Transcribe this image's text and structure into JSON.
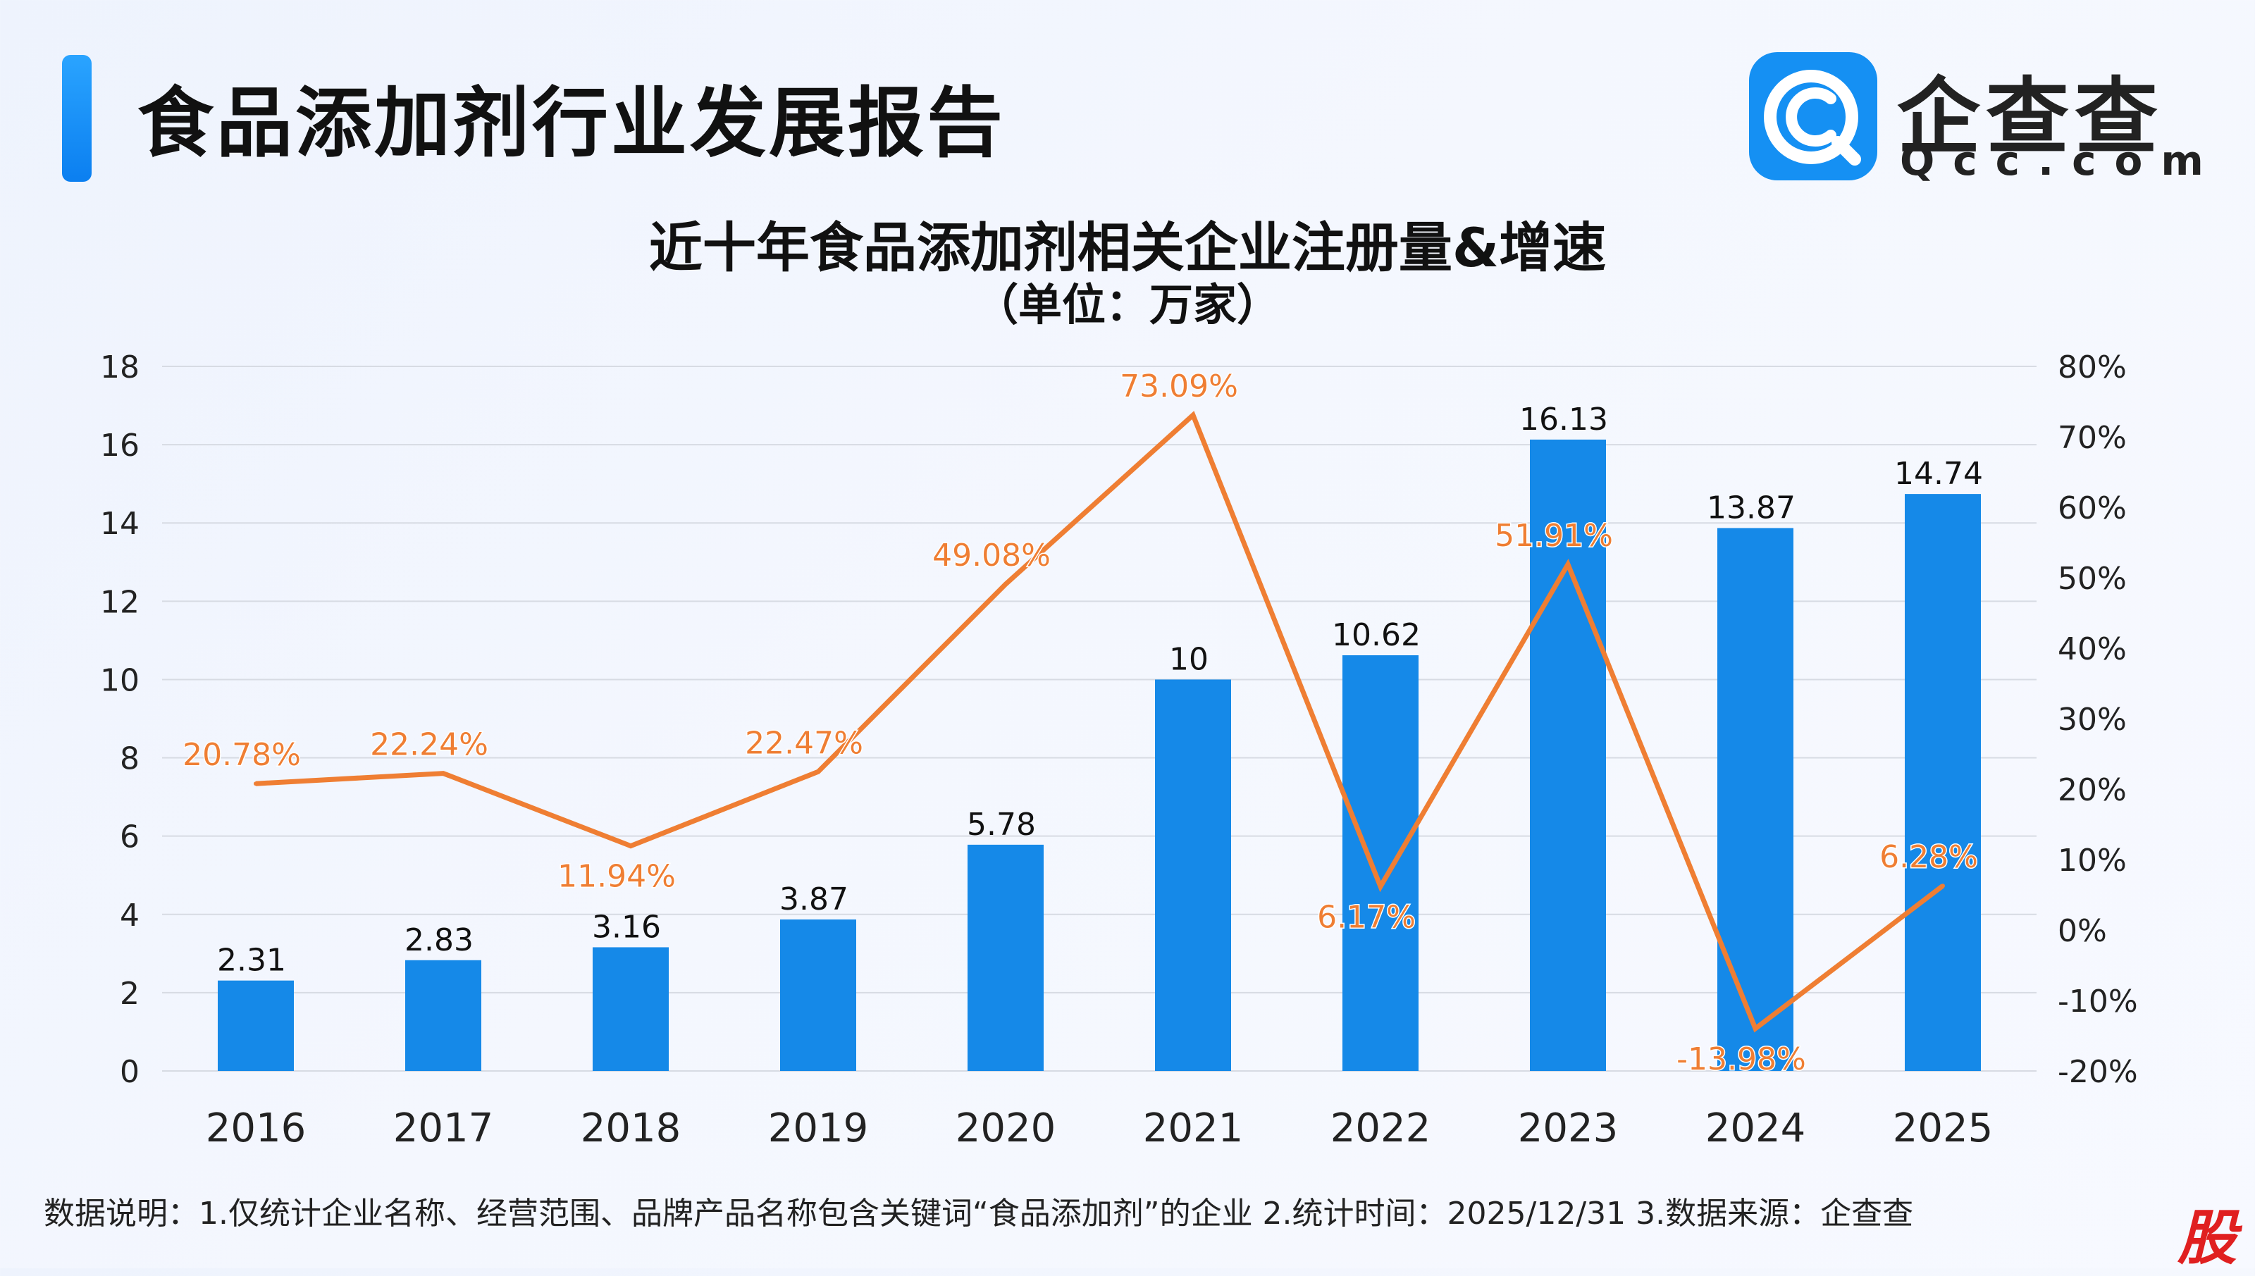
{
  "header": {
    "title": "食品添加剂行业发展报告",
    "logo_text": "企查查",
    "logo_domain": "Qcc.com"
  },
  "footnote": "数据说明：1.仅统计企业名称、经营范围、品牌产品名称包含关键词“食品添加剂”的企业   2.统计时间：2025/12/31    3.数据来源：企查查",
  "corner_mark": "股",
  "colors": {
    "bar": "#1589e8",
    "line": "#ef7e33",
    "grid": "#d7dbe3",
    "accent": "#0b7ff0"
  },
  "chart_data": {
    "type": "bar+line",
    "title": "近十年食品添加剂相关企业注册量&增速",
    "subtitle": "（单位：万家）",
    "categories": [
      "2016",
      "2017",
      "2018",
      "2019",
      "2020",
      "2021",
      "2022",
      "2023",
      "2024",
      "2025"
    ],
    "series": [
      {
        "name": "注册量",
        "type": "bar",
        "axis": "left",
        "values": [
          2.31,
          2.83,
          3.16,
          3.87,
          5.78,
          10,
          10.62,
          16.13,
          13.87,
          14.74
        ],
        "labels": [
          "2.31",
          "2.83",
          "3.16",
          "3.87",
          "5.78",
          "10",
          "10.62",
          "16.13",
          "13.87",
          "14.74"
        ]
      },
      {
        "name": "增速",
        "type": "line",
        "axis": "right",
        "values": [
          20.78,
          22.24,
          11.94,
          22.47,
          49.08,
          73.09,
          6.17,
          51.91,
          -13.98,
          6.28
        ],
        "labels": [
          "20.78%",
          "22.24%",
          "11.94%",
          "22.47%",
          "49.08%",
          "73.09%",
          "6.17%",
          "51.91%",
          "-13.98%",
          "6.28%"
        ]
      }
    ],
    "y_left": {
      "min": 0,
      "max": 18,
      "ticks": [
        "0",
        "2",
        "4",
        "6",
        "8",
        "10",
        "12",
        "14",
        "16",
        "18"
      ]
    },
    "y_right": {
      "min": -20,
      "max": 80,
      "ticks": [
        "-20%",
        "-10%",
        "0%",
        "10%",
        "20%",
        "30%",
        "40%",
        "50%",
        "60%",
        "70%",
        "80%"
      ]
    },
    "grid": true
  }
}
